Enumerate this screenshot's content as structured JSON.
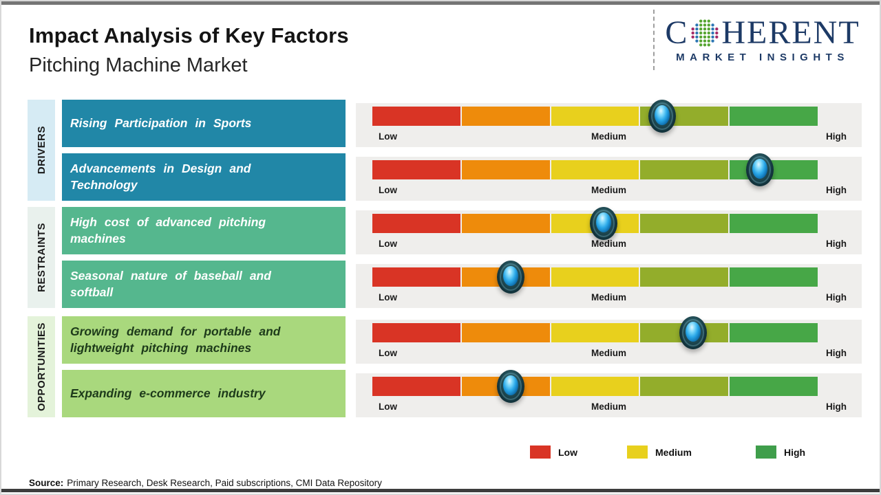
{
  "header": {
    "title": "Impact Analysis of Key Factors",
    "subtitle": "Pitching Machine Market",
    "logo": {
      "word_start": "C",
      "word_end": "HERENT",
      "tagline": "MARKET INSIGHTS",
      "brand_color": "#1d3a66",
      "sphere_dot_colors": {
        "inner": "#56a531",
        "middle": "#2d76b4",
        "outer": "#a62a66"
      }
    }
  },
  "chart_data": {
    "type": "impact-scale",
    "title": "Impact Analysis of Key Factors",
    "subtitle": "Pitching Machine Market",
    "scale_labels": [
      "Low",
      "Medium",
      "High"
    ],
    "scale_range_pct": [
      0,
      100
    ],
    "segment_colors": [
      "#d93425",
      "#ee8b0b",
      "#e8d01d",
      "#93ad2b",
      "#47a747"
    ],
    "groups": [
      {
        "name": "DRIVERS",
        "side_bg": "#d6ebf4",
        "box_color": "#2187a7",
        "box_text_color": "#ffffff",
        "factors": [
          {
            "label": "Rising Participation in Sports",
            "impact_pct": 65,
            "impact_level": "Medium-High"
          },
          {
            "label": "Advancements in Design and Technology",
            "impact_pct": 87,
            "impact_level": "High"
          }
        ]
      },
      {
        "name": "RESTRAINTS",
        "side_bg": "#e9f1ed",
        "box_color": "#55b78e",
        "box_text_color": "#ffffff",
        "factors": [
          {
            "label": "High cost of advanced pitching machines",
            "impact_pct": 52,
            "impact_level": "Medium"
          },
          {
            "label": "Seasonal nature of baseball and softball",
            "impact_pct": 31,
            "impact_level": "Low-Medium"
          }
        ]
      },
      {
        "name": "OPPORTUNITIES",
        "side_bg": "#e4f3da",
        "box_color": "#a9d87d",
        "box_text_color": "#1d3a1a",
        "factors": [
          {
            "label": "Growing demand for portable and lightweight pitching machines",
            "impact_pct": 72,
            "impact_level": "Medium-High"
          },
          {
            "label": "Expanding e-commerce industry",
            "impact_pct": 31,
            "impact_level": "Low-Medium"
          }
        ]
      }
    ],
    "legend_position": "bottom-right",
    "grid": false
  },
  "legend": {
    "items": [
      {
        "label": "Low",
        "color": "#d93425"
      },
      {
        "label": "Medium",
        "color": "#e8d01d"
      },
      {
        "label": "High",
        "color": "#3f9e4b"
      }
    ]
  },
  "source": {
    "label": "Source:",
    "text": "Primary Research, Desk Research, Paid subscriptions, CMI Data Repository"
  }
}
